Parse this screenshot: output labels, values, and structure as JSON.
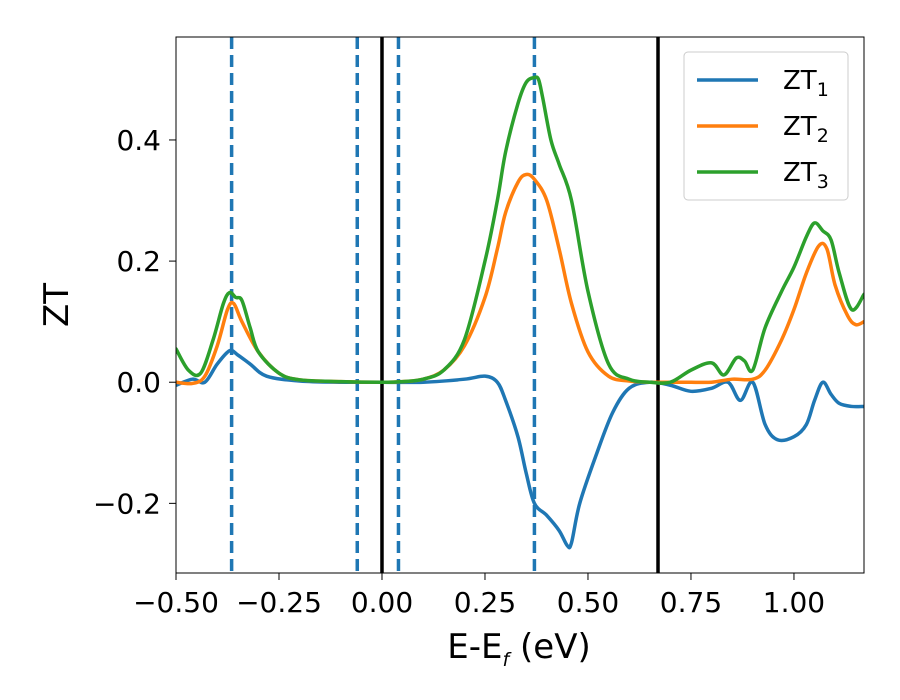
{
  "chart_data": {
    "type": "line",
    "xlabel": "E-E",
    "xlabel_sub": "f",
    "xlabel_unit": " (eV)",
    "ylabel": "ZT",
    "xlim": [
      -0.5,
      1.17
    ],
    "ylim": [
      -0.315,
      0.57
    ],
    "grid": false,
    "legend_placement": "top-right",
    "x_ticks": [
      {
        "value": -0.5,
        "label": "−0.50"
      },
      {
        "value": -0.25,
        "label": "−0.25"
      },
      {
        "value": 0.0,
        "label": "0.00"
      },
      {
        "value": 0.25,
        "label": "0.25"
      },
      {
        "value": 0.5,
        "label": "0.50"
      },
      {
        "value": 0.75,
        "label": "0.75"
      },
      {
        "value": 1.0,
        "label": "1.00"
      }
    ],
    "y_ticks": [
      {
        "value": -0.2,
        "label": "−0.2"
      },
      {
        "value": 0.0,
        "label": "0.0"
      },
      {
        "value": 0.2,
        "label": "0.2"
      },
      {
        "value": 0.4,
        "label": "0.4"
      }
    ],
    "vlines_dashed": [
      -0.365,
      -0.06,
      0.04,
      0.37
    ],
    "vlines_solid": [
      0.0,
      0.67
    ],
    "vline_dashed_color": "#1f77b4",
    "vline_solid_color": "#000000",
    "series": [
      {
        "label_base": "ZT",
        "label_sub": "1",
        "color": "#1f77b4",
        "x": [
          -0.5,
          -0.46,
          -0.43,
          -0.4,
          -0.37,
          -0.35,
          -0.32,
          -0.28,
          -0.2,
          -0.1,
          0.0,
          0.1,
          0.2,
          0.25,
          0.28,
          0.3,
          0.33,
          0.35,
          0.37,
          0.4,
          0.43,
          0.45,
          0.46,
          0.48,
          0.52,
          0.56,
          0.6,
          0.65,
          0.7,
          0.75,
          0.8,
          0.84,
          0.87,
          0.9,
          0.93,
          0.96,
          1.0,
          1.03,
          1.05,
          1.07,
          1.09,
          1.11,
          1.14,
          1.17
        ],
        "y": [
          -0.005,
          0.005,
          0.0,
          0.03,
          0.052,
          0.045,
          0.03,
          0.01,
          0.002,
          0.0,
          0.0,
          0.0,
          0.005,
          0.01,
          0.0,
          -0.03,
          -0.09,
          -0.15,
          -0.2,
          -0.22,
          -0.245,
          -0.27,
          -0.265,
          -0.2,
          -0.12,
          -0.05,
          -0.01,
          0.0,
          -0.005,
          -0.015,
          -0.01,
          0.0,
          -0.03,
          0.0,
          -0.07,
          -0.095,
          -0.09,
          -0.07,
          -0.03,
          0.0,
          -0.02,
          -0.035,
          -0.04,
          -0.04
        ]
      },
      {
        "label_base": "ZT",
        "label_sub": "2",
        "color": "#ff7f0e",
        "x": [
          -0.5,
          -0.46,
          -0.43,
          -0.4,
          -0.375,
          -0.36,
          -0.34,
          -0.3,
          -0.25,
          -0.2,
          -0.1,
          0.0,
          0.05,
          0.1,
          0.15,
          0.2,
          0.25,
          0.28,
          0.3,
          0.33,
          0.35,
          0.37,
          0.4,
          0.43,
          0.46,
          0.5,
          0.55,
          0.6,
          0.65,
          0.7,
          0.75,
          0.8,
          0.85,
          0.9,
          0.93,
          0.97,
          1.0,
          1.03,
          1.06,
          1.08,
          1.1,
          1.13,
          1.15,
          1.17
        ],
        "y": [
          0.0,
          -0.002,
          0.01,
          0.06,
          0.12,
          0.13,
          0.1,
          0.05,
          0.015,
          0.004,
          0.001,
          0.0,
          0.001,
          0.005,
          0.02,
          0.06,
          0.14,
          0.22,
          0.28,
          0.33,
          0.343,
          0.335,
          0.3,
          0.22,
          0.13,
          0.05,
          0.01,
          0.002,
          0.0,
          0.0,
          0.0,
          0.0,
          0.005,
          0.005,
          0.02,
          0.07,
          0.12,
          0.18,
          0.225,
          0.22,
          0.16,
          0.11,
          0.095,
          0.1
        ]
      },
      {
        "label_base": "ZT",
        "label_sub": "3",
        "color": "#2ca02c",
        "x": [
          -0.5,
          -0.47,
          -0.44,
          -0.41,
          -0.385,
          -0.37,
          -0.355,
          -0.34,
          -0.32,
          -0.3,
          -0.25,
          -0.2,
          -0.1,
          0.0,
          0.05,
          0.1,
          0.15,
          0.2,
          0.25,
          0.28,
          0.3,
          0.33,
          0.35,
          0.37,
          0.38,
          0.39,
          0.41,
          0.43,
          0.46,
          0.5,
          0.55,
          0.6,
          0.65,
          0.7,
          0.75,
          0.8,
          0.83,
          0.86,
          0.88,
          0.9,
          0.93,
          0.97,
          1.0,
          1.03,
          1.05,
          1.07,
          1.09,
          1.11,
          1.14,
          1.17
        ],
        "y": [
          0.055,
          0.02,
          0.015,
          0.07,
          0.13,
          0.148,
          0.14,
          0.135,
          0.09,
          0.05,
          0.015,
          0.004,
          0.001,
          0.0,
          0.001,
          0.005,
          0.02,
          0.07,
          0.2,
          0.3,
          0.38,
          0.46,
          0.495,
          0.503,
          0.5,
          0.47,
          0.4,
          0.36,
          0.3,
          0.15,
          0.03,
          0.005,
          0.0,
          0.0,
          0.02,
          0.032,
          0.012,
          0.04,
          0.035,
          0.02,
          0.09,
          0.15,
          0.19,
          0.24,
          0.263,
          0.25,
          0.235,
          0.18,
          0.12,
          0.145
        ]
      }
    ]
  }
}
